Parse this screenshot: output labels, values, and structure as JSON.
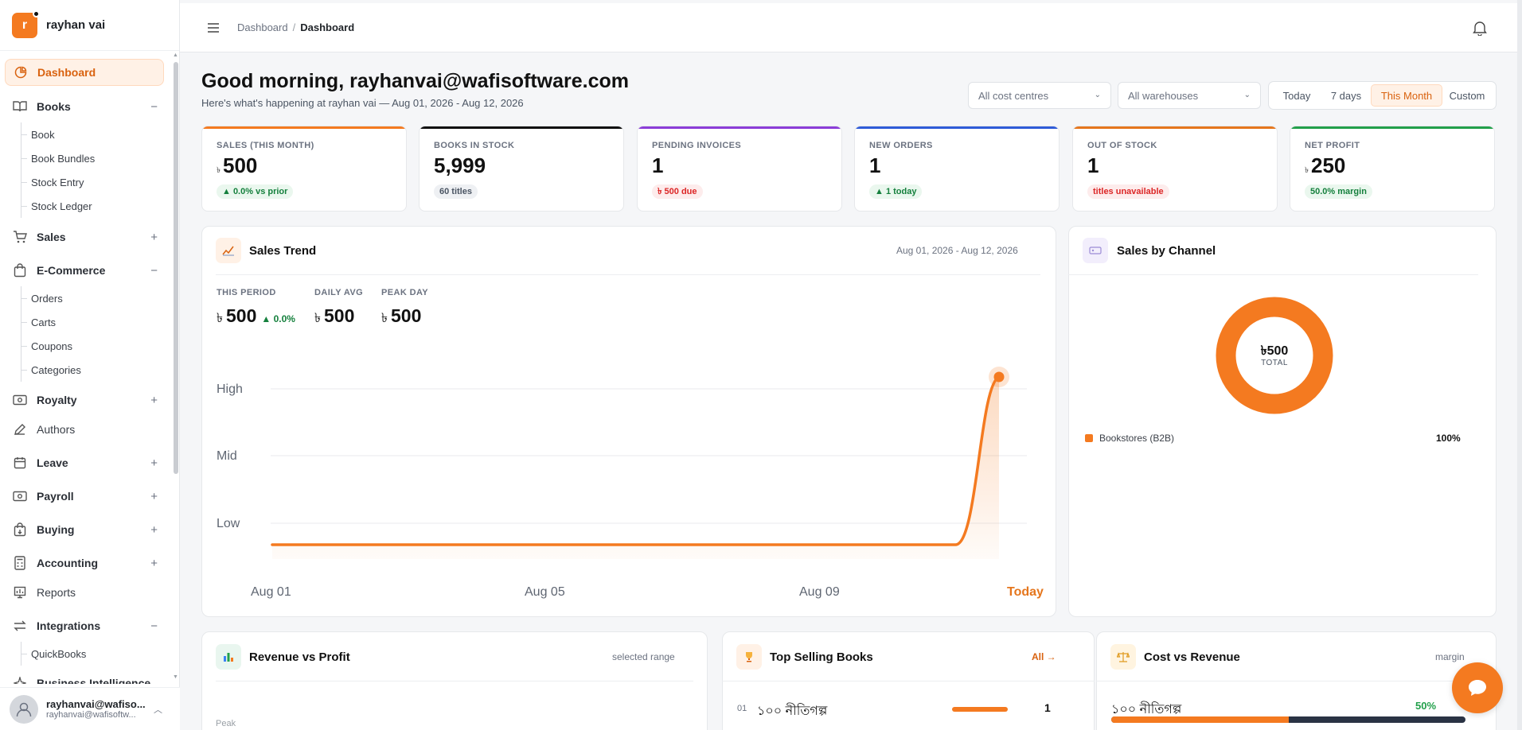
{
  "brand": {
    "logo_letter": "r",
    "name": "rayhan vai"
  },
  "sidebar": {
    "items": [
      {
        "label": "Dashboard"
      },
      {
        "label": "Books",
        "toggle": "−"
      },
      {
        "label": "Sales",
        "toggle": "+"
      },
      {
        "label": "E-Commerce",
        "toggle": "−"
      },
      {
        "label": "Royalty",
        "toggle": "+"
      },
      {
        "label": "Authors"
      },
      {
        "label": "Leave",
        "toggle": "+"
      },
      {
        "label": "Payroll",
        "toggle": "+"
      },
      {
        "label": "Buying",
        "toggle": "+"
      },
      {
        "label": "Accounting",
        "toggle": "+"
      },
      {
        "label": "Reports"
      },
      {
        "label": "Integrations",
        "toggle": "−"
      },
      {
        "label": "Business Intelligence"
      }
    ],
    "books_sub": [
      "Book",
      "Book Bundles",
      "Stock Entry",
      "Stock Ledger"
    ],
    "ecommerce_sub": [
      "Orders",
      "Carts",
      "Coupons",
      "Categories"
    ],
    "integrations_sub": [
      "QuickBooks"
    ],
    "user": {
      "name": "rayhanvai@wafiso...",
      "email": "rayhanvai@wafisoftw..."
    }
  },
  "topbar": {
    "breadcrumb": [
      "Dashboard",
      "Dashboard"
    ],
    "separator": "/"
  },
  "header": {
    "greeting": "Good morning, rayhanvai@wafisoftware.com",
    "subtitle": "Here's what's happening at rayhan vai — Aug 01, 2026 - Aug 12, 2026",
    "cost_centre_select": "All cost centres",
    "warehouse_select": "All warehouses",
    "range_buttons": [
      "Today",
      "7 days",
      "This Month",
      "Custom"
    ],
    "active_range": "This Month"
  },
  "kpis": [
    {
      "label": "SALES (THIS MONTH)",
      "currency": "৳",
      "value": "500",
      "badge": "▲ 0.0% vs prior",
      "color": "#f47a20"
    },
    {
      "label": "BOOKS IN STOCK",
      "currency": "",
      "value": "5,999",
      "badge": "60 titles",
      "color": "#111111"
    },
    {
      "label": "PENDING INVOICES",
      "currency": "",
      "value": "1",
      "badge": "৳ 500 due",
      "color": "#8b3dd8"
    },
    {
      "label": "NEW ORDERS",
      "currency": "",
      "value": "1",
      "badge": "▲ 1 today",
      "color": "#2f5bd8"
    },
    {
      "label": "OUT OF STOCK",
      "currency": "",
      "value": "1",
      "badge": "titles unavailable",
      "color": "#e5761d"
    },
    {
      "label": "NET PROFIT",
      "currency": "৳",
      "value": "250",
      "badge": "50.0% margin",
      "color": "#22a04b"
    }
  ],
  "sales_trend": {
    "title": "Sales Trend",
    "range": "Aug 01, 2026 - Aug 12, 2026",
    "this_period_label": "THIS PERIOD",
    "this_period_value": "500",
    "this_period_delta": "▲ 0.0%",
    "daily_avg_label": "DAILY AVG",
    "daily_avg_value": "500",
    "peak_day_label": "PEAK DAY",
    "peak_day_value": "500",
    "currency": "৳"
  },
  "chart_data": {
    "type": "area",
    "x": [
      "Aug 01",
      "Aug 05",
      "Aug 09",
      "Today"
    ],
    "y_tick_labels": [
      "High",
      "Mid",
      "Low"
    ],
    "series": [
      {
        "values": [
          0,
          0,
          0,
          500
        ]
      }
    ],
    "x_tick_labels": [
      "Aug 01",
      "Aug 05",
      "Aug 09",
      "Today"
    ],
    "highlight_label": "Today",
    "color": "#f47a20"
  },
  "channel": {
    "title": "Sales by Channel",
    "total_value": "৳500",
    "total_label": "TOTAL",
    "legend": [
      {
        "name": "Bookstores (B2B)",
        "pct": "100%"
      }
    ]
  },
  "revenue_profit": {
    "title": "Revenue vs Profit",
    "note": "selected range",
    "axis_label": "Peak"
  },
  "top_selling": {
    "title": "Top Selling Books",
    "link": "All →",
    "rows": [
      {
        "rank": "01",
        "name": "১০০ নীতিগল্প",
        "qty": "1",
        "fill": 1.0
      }
    ]
  },
  "cost_revenue": {
    "title": "Cost vs Revenue",
    "note": "margin",
    "rows": [
      {
        "name": "১০০ নীতিগল্প",
        "pct": "50%",
        "cost_fraction": 0.5
      }
    ]
  }
}
